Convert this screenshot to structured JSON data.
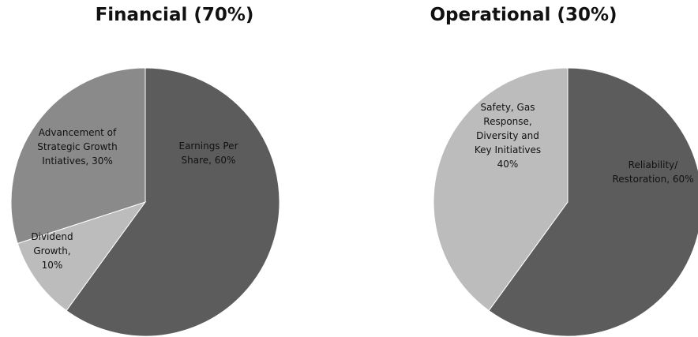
{
  "chart_data": [
    {
      "type": "pie",
      "title": "Financial (70%)",
      "slices": [
        {
          "label": [
            "Earnings Per",
            "Share, 60%"
          ],
          "value": 60,
          "color": "#5c5c5c"
        },
        {
          "label": [
            "Dividend",
            "Growth,",
            "10%"
          ],
          "value": 10,
          "color": "#bcbcbc"
        },
        {
          "label": [
            "Advancement of",
            "Strategic Growth",
            "Intiatives, 30%"
          ],
          "value": 30,
          "color": "#8a8a8a"
        }
      ]
    },
    {
      "type": "pie",
      "title": "Operational (30%)",
      "slices": [
        {
          "label": [
            "Reliability/",
            "Restoration, 60%"
          ],
          "value": 60,
          "color": "#5c5c5c"
        },
        {
          "label": [
            "Safety, Gas",
            "Response,",
            "Diversity and",
            "Key Initiatives",
            "40%"
          ],
          "value": 40,
          "color": "#bcbcbc"
        }
      ]
    }
  ]
}
